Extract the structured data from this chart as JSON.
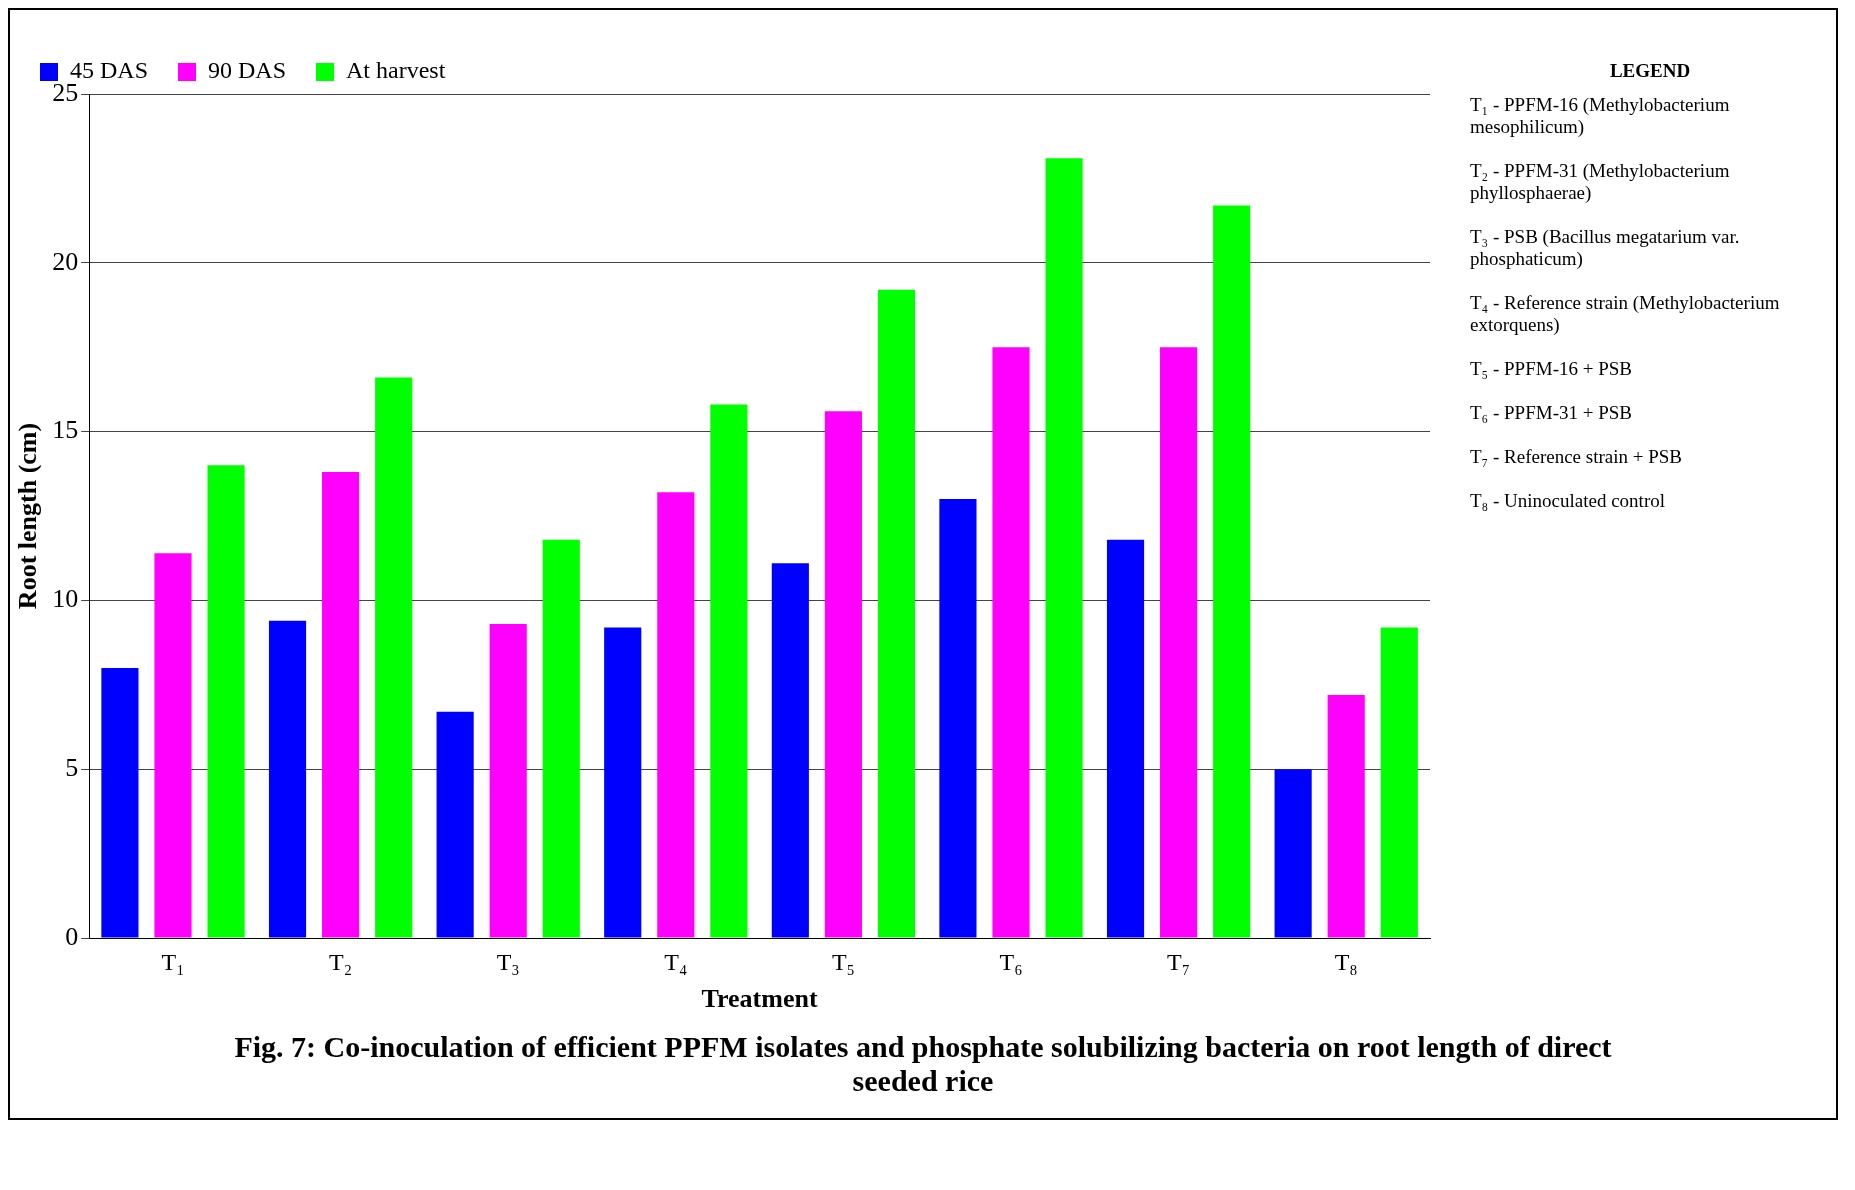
{
  "chart_data": {
    "type": "bar",
    "title": "Fig. 7: Co-inoculation of efficient PPFM isolates and phosphate solubilizing bacteria on root length of direct seeded rice",
    "xlabel": "Treatment",
    "ylabel": "Root length (cm)",
    "categories": [
      "T₁",
      "T₂",
      "T₃",
      "T₄",
      "T₅",
      "T₆",
      "T₇",
      "T₈"
    ],
    "series": [
      {
        "name": "45 DAS",
        "color": "#0000ff",
        "values": [
          8.0,
          9.4,
          6.7,
          9.2,
          11.1,
          13.0,
          11.8,
          5.0
        ]
      },
      {
        "name": "90 DAS",
        "color": "#ff00ff",
        "values": [
          11.4,
          13.8,
          9.3,
          13.2,
          15.6,
          17.5,
          17.5,
          7.2
        ]
      },
      {
        "name": "At harvest",
        "color": "#00ff00",
        "values": [
          14.0,
          16.6,
          11.8,
          15.8,
          19.2,
          23.1,
          21.7,
          9.2
        ]
      }
    ],
    "ylim": [
      0,
      25
    ],
    "yticks": [
      0,
      5,
      10,
      15,
      20,
      25
    ],
    "grid": "y",
    "legend": "top left",
    "annotations": [
      "LEGEND",
      "T₁ - PPFM-16 (Methylobacterium mesophilicum)",
      "T₂ - PPFM-31 (Methylobacterium phyllosphaerae)",
      "T₃ - PSB (Bacillus megatarium var. phosphaticum)",
      "T₄ - Reference strain (Methylobacterium extorquens)",
      "T₅ - PPFM-16 + PSB",
      "T₆ - PPFM-31 + PSB",
      "T₇ - Reference strain + PSB",
      "T₈ - Uninoculated control"
    ]
  }
}
